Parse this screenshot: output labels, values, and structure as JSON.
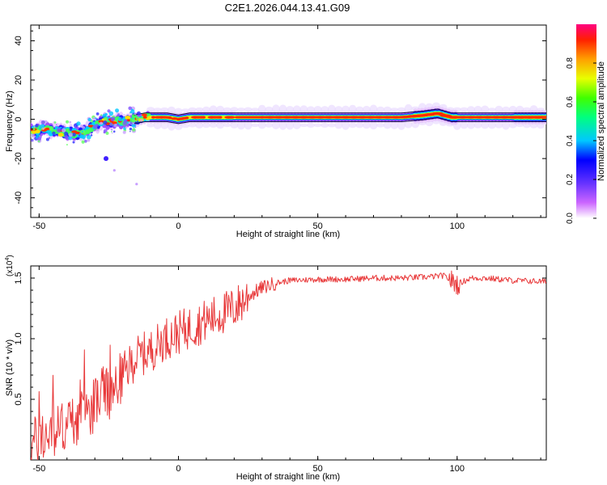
{
  "title": "C2E1.2026.044.13.41.G09",
  "chart_data": [
    {
      "type": "heatmap",
      "title": "C2E1.2026.044.13.41.G09",
      "xlabel": "Height of straight line (km)",
      "ylabel": "Frequency (Hz)",
      "xlim": [
        -53,
        132
      ],
      "ylim": [
        -50,
        48
      ],
      "xticks": [
        -50,
        0,
        50,
        100
      ],
      "yticks": [
        -40,
        -20,
        0,
        20,
        40
      ],
      "colorbar": {
        "label": "Normalized spectral amplitude",
        "range": [
          0,
          1
        ],
        "ticks": [
          0.0,
          0.2,
          0.4,
          0.6,
          0.8
        ],
        "tick_labels": [
          "0.0",
          "0.2",
          "0.4",
          "0.6",
          "0.8"
        ]
      },
      "ridge": {
        "x": [
          -52,
          -48,
          -44,
          -40,
          -36,
          -32,
          -30,
          -28,
          -24,
          -20,
          -16,
          -12,
          -8,
          -4,
          0,
          4,
          8,
          12,
          16,
          20,
          25,
          30,
          40,
          50,
          60,
          70,
          80,
          88,
          93,
          98,
          105,
          115,
          125,
          132
        ],
        "frequency": [
          -6,
          -5,
          -6,
          -7,
          -7,
          -5,
          -3,
          -2,
          -1,
          -1,
          0,
          1,
          1,
          1,
          0,
          1,
          1,
          1,
          1,
          1,
          1,
          1,
          1,
          1,
          1,
          1,
          1,
          2,
          3,
          1,
          1,
          1,
          1,
          1
        ]
      },
      "outliers": [
        {
          "x": -26,
          "frequency": -20
        },
        {
          "x": -23,
          "frequency": -26
        },
        {
          "x": -15,
          "frequency": -33
        }
      ]
    },
    {
      "type": "line",
      "xlabel": "Height of straight line (km)",
      "ylabel": "SNR (10 * v/v)",
      "y_multiplier_label": "(x10",
      "y_multiplier_exp": "4",
      "y_multiplier_close": ")",
      "xlim": [
        -53,
        132
      ],
      "ylim": [
        0.0,
        1.6
      ],
      "xticks": [
        -50,
        0,
        50,
        100
      ],
      "yticks": [
        0.5,
        1.0,
        1.5
      ],
      "ytick_labels": [
        "0.5",
        "1.0",
        "1.5"
      ],
      "color": "#e8393a",
      "series": [
        {
          "name": "SNR",
          "x": [
            -53,
            -50,
            -45,
            -40,
            -35,
            -30,
            -27,
            -25,
            -20,
            -15,
            -10,
            -5,
            0,
            5,
            10,
            15,
            20,
            25,
            30,
            35,
            40,
            50,
            60,
            70,
            80,
            90,
            95,
            100,
            105,
            110,
            120,
            132
          ],
          "y": [
            0.12,
            0.18,
            0.22,
            0.3,
            0.35,
            0.45,
            0.6,
            0.5,
            0.7,
            0.85,
            0.9,
            1.0,
            1.05,
            1.1,
            1.15,
            1.2,
            1.25,
            1.35,
            1.42,
            1.46,
            1.48,
            1.49,
            1.49,
            1.5,
            1.5,
            1.51,
            1.52,
            1.45,
            1.5,
            1.5,
            1.48,
            1.47
          ]
        }
      ]
    }
  ]
}
